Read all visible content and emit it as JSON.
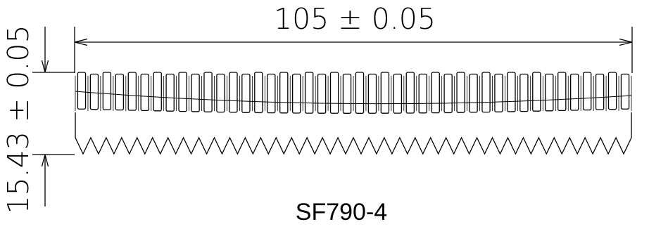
{
  "dimensions": {
    "length_label": "105 ± 0.05",
    "height_label": "15.43 ± 0.05"
  },
  "part_label": "SF790-4",
  "colors": {
    "line": "#000000",
    "background": "#ffffff"
  }
}
